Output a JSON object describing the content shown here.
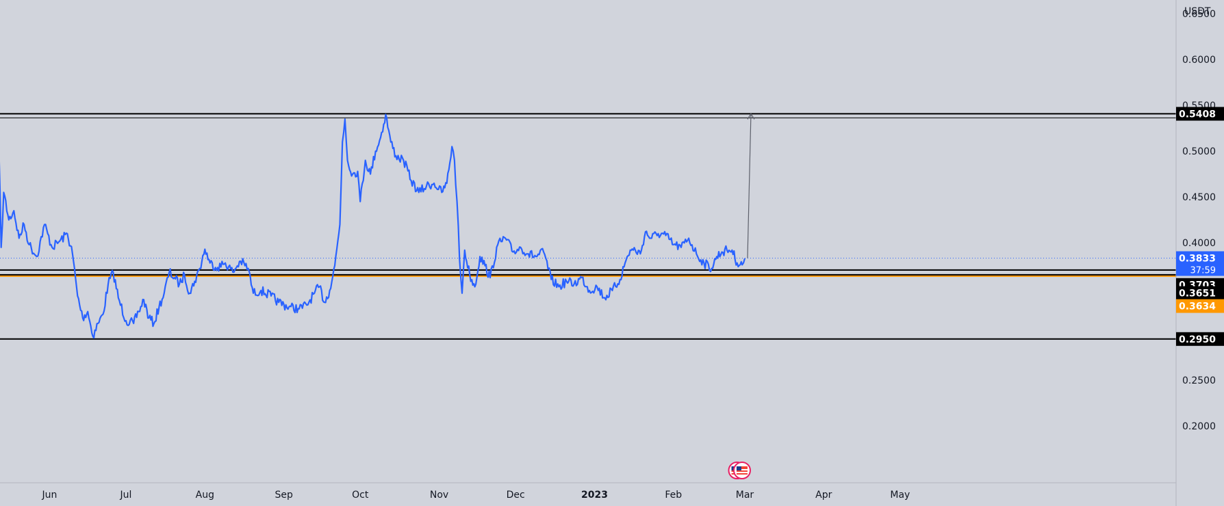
{
  "colors": {
    "background": "#d1d4dc",
    "price_line": "#2962ff",
    "support_band": "#ff9800",
    "level_line": "#000000",
    "label_black_bg": "#000000",
    "label_blue_bg": "#2962ff",
    "label_orange_bg": "#ff9800",
    "axis_border": "#b2b5be"
  },
  "icons": [
    "flag-us-icon",
    "flag-us-icon"
  ],
  "chart_data": {
    "type": "line",
    "currency": "USDT",
    "ylim": [
      0.19,
      0.665
    ],
    "xlim": [
      "2022-05-12",
      "2023-05-27"
    ],
    "yticks": [
      "0.6500",
      "0.6000",
      "0.5500",
      "0.5000",
      "0.4500",
      "0.4000",
      "0.2500",
      "0.2000"
    ],
    "xticks": [
      {
        "date": "2022-06-01",
        "label": "Jun",
        "bold": false
      },
      {
        "date": "2022-07-01",
        "label": "Jul",
        "bold": false
      },
      {
        "date": "2022-08-01",
        "label": "Aug",
        "bold": false
      },
      {
        "date": "2022-09-01",
        "label": "Sep",
        "bold": false
      },
      {
        "date": "2022-10-01",
        "label": "Oct",
        "bold": false
      },
      {
        "date": "2022-11-01",
        "label": "Nov",
        "bold": false
      },
      {
        "date": "2022-12-01",
        "label": "Dec",
        "bold": false
      },
      {
        "date": "2023-01-01",
        "label": "2023",
        "bold": true
      },
      {
        "date": "2023-02-01",
        "label": "Feb",
        "bold": false
      },
      {
        "date": "2023-03-01",
        "label": "Mar",
        "bold": false
      },
      {
        "date": "2023-04-01",
        "label": "Apr",
        "bold": false
      },
      {
        "date": "2023-05-01",
        "label": "May",
        "bold": false
      }
    ],
    "series": [
      {
        "points": [
          [
            "2022-05-12",
            0.515
          ],
          [
            "2022-05-13",
            0.395
          ],
          [
            "2022-05-14",
            0.455
          ],
          [
            "2022-05-16",
            0.425
          ],
          [
            "2022-05-18",
            0.435
          ],
          [
            "2022-05-20",
            0.405
          ],
          [
            "2022-05-22",
            0.42
          ],
          [
            "2022-05-24",
            0.398
          ],
          [
            "2022-05-27",
            0.385
          ],
          [
            "2022-05-30",
            0.42
          ],
          [
            "2022-06-02",
            0.395
          ],
          [
            "2022-06-05",
            0.402
          ],
          [
            "2022-06-08",
            0.41
          ],
          [
            "2022-06-10",
            0.388
          ],
          [
            "2022-06-12",
            0.342
          ],
          [
            "2022-06-14",
            0.318
          ],
          [
            "2022-06-16",
            0.325
          ],
          [
            "2022-06-18",
            0.298
          ],
          [
            "2022-06-20",
            0.312
          ],
          [
            "2022-06-22",
            0.322
          ],
          [
            "2022-06-24",
            0.355
          ],
          [
            "2022-06-26",
            0.368
          ],
          [
            "2022-06-28",
            0.34
          ],
          [
            "2022-07-01",
            0.315
          ],
          [
            "2022-07-04",
            0.312
          ],
          [
            "2022-07-06",
            0.325
          ],
          [
            "2022-07-08",
            0.338
          ],
          [
            "2022-07-10",
            0.318
          ],
          [
            "2022-07-12",
            0.312
          ],
          [
            "2022-07-14",
            0.33
          ],
          [
            "2022-07-16",
            0.345
          ],
          [
            "2022-07-18",
            0.368
          ],
          [
            "2022-07-20",
            0.362
          ],
          [
            "2022-07-22",
            0.355
          ],
          [
            "2022-07-24",
            0.365
          ],
          [
            "2022-07-26",
            0.345
          ],
          [
            "2022-07-28",
            0.358
          ],
          [
            "2022-07-30",
            0.372
          ],
          [
            "2022-08-01",
            0.393
          ],
          [
            "2022-08-03",
            0.378
          ],
          [
            "2022-08-06",
            0.373
          ],
          [
            "2022-08-09",
            0.378
          ],
          [
            "2022-08-12",
            0.368
          ],
          [
            "2022-08-15",
            0.38
          ],
          [
            "2022-08-18",
            0.372
          ],
          [
            "2022-08-20",
            0.345
          ],
          [
            "2022-08-23",
            0.348
          ],
          [
            "2022-08-27",
            0.342
          ],
          [
            "2022-08-30",
            0.335
          ],
          [
            "2022-09-03",
            0.33
          ],
          [
            "2022-09-07",
            0.328
          ],
          [
            "2022-09-10",
            0.332
          ],
          [
            "2022-09-13",
            0.345
          ],
          [
            "2022-09-15",
            0.352
          ],
          [
            "2022-09-17",
            0.335
          ],
          [
            "2022-09-19",
            0.348
          ],
          [
            "2022-09-21",
            0.375
          ],
          [
            "2022-09-23",
            0.42
          ],
          [
            "2022-09-24",
            0.51
          ],
          [
            "2022-09-25",
            0.535
          ],
          [
            "2022-09-26",
            0.49
          ],
          [
            "2022-09-28",
            0.475
          ],
          [
            "2022-09-30",
            0.478
          ],
          [
            "2022-10-01",
            0.445
          ],
          [
            "2022-10-03",
            0.49
          ],
          [
            "2022-10-05",
            0.475
          ],
          [
            "2022-10-07",
            0.5
          ],
          [
            "2022-10-09",
            0.515
          ],
          [
            "2022-10-11",
            0.54
          ],
          [
            "2022-10-13",
            0.51
          ],
          [
            "2022-10-15",
            0.495
          ],
          [
            "2022-10-18",
            0.49
          ],
          [
            "2022-10-21",
            0.468
          ],
          [
            "2022-10-24",
            0.455
          ],
          [
            "2022-10-27",
            0.462
          ],
          [
            "2022-10-30",
            0.465
          ],
          [
            "2022-11-02",
            0.455
          ],
          [
            "2022-11-04",
            0.465
          ],
          [
            "2022-11-06",
            0.505
          ],
          [
            "2022-11-07",
            0.49
          ],
          [
            "2022-11-08",
            0.445
          ],
          [
            "2022-11-09",
            0.382
          ],
          [
            "2022-11-10",
            0.345
          ],
          [
            "2022-11-11",
            0.392
          ],
          [
            "2022-11-13",
            0.365
          ],
          [
            "2022-11-15",
            0.352
          ],
          [
            "2022-11-17",
            0.385
          ],
          [
            "2022-11-19",
            0.375
          ],
          [
            "2022-11-21",
            0.362
          ],
          [
            "2022-11-24",
            0.398
          ],
          [
            "2022-11-27",
            0.405
          ],
          [
            "2022-11-30",
            0.39
          ],
          [
            "2022-12-03",
            0.395
          ],
          [
            "2022-12-06",
            0.388
          ],
          [
            "2022-12-09",
            0.385
          ],
          [
            "2022-12-12",
            0.39
          ],
          [
            "2022-12-15",
            0.36
          ],
          [
            "2022-12-18",
            0.352
          ],
          [
            "2022-12-21",
            0.358
          ],
          [
            "2022-12-24",
            0.355
          ],
          [
            "2022-12-27",
            0.362
          ],
          [
            "2022-12-30",
            0.348
          ],
          [
            "2023-01-02",
            0.352
          ],
          [
            "2023-01-05",
            0.34
          ],
          [
            "2023-01-08",
            0.348
          ],
          [
            "2023-01-11",
            0.36
          ],
          [
            "2023-01-13",
            0.378
          ],
          [
            "2023-01-15",
            0.392
          ],
          [
            "2023-01-17",
            0.392
          ],
          [
            "2023-01-19",
            0.388
          ],
          [
            "2023-01-21",
            0.412
          ],
          [
            "2023-01-23",
            0.405
          ],
          [
            "2023-01-26",
            0.41
          ],
          [
            "2023-01-29",
            0.408
          ],
          [
            "2023-02-01",
            0.398
          ],
          [
            "2023-02-04",
            0.395
          ],
          [
            "2023-02-07",
            0.405
          ],
          [
            "2023-02-10",
            0.388
          ],
          [
            "2023-02-13",
            0.378
          ],
          [
            "2023-02-16",
            0.372
          ],
          [
            "2023-02-18",
            0.385
          ],
          [
            "2023-02-20",
            0.39
          ],
          [
            "2023-02-22",
            0.392
          ],
          [
            "2023-02-24",
            0.392
          ],
          [
            "2023-02-26",
            0.378
          ],
          [
            "2023-02-28",
            0.376
          ],
          [
            "2023-03-01",
            0.383
          ]
        ]
      }
    ],
    "horizontal_levels": [
      {
        "value": 0.5408,
        "label": "0.5408",
        "style": "double"
      },
      {
        "value": 0.3703,
        "label": "0.3703",
        "style": "solid"
      },
      {
        "value": 0.3651,
        "label": "0.3651",
        "style": "solid"
      },
      {
        "value": 0.295,
        "label": "0.2950",
        "style": "solid"
      }
    ],
    "support_band": {
      "from": 0.3634,
      "to": 0.3651,
      "label": "0.3634"
    },
    "last_price": {
      "value": 0.3833,
      "label": "0.3833",
      "countdown": "37:59"
    },
    "annotation_arrow": {
      "from": {
        "date": "2023-03-01",
        "value": 0.3833
      },
      "to": {
        "date": "2023-03-01",
        "value": 0.5408
      }
    },
    "event_markers": [
      {
        "date": "2023-02-27"
      },
      {
        "date": "2023-03-01"
      }
    ]
  }
}
